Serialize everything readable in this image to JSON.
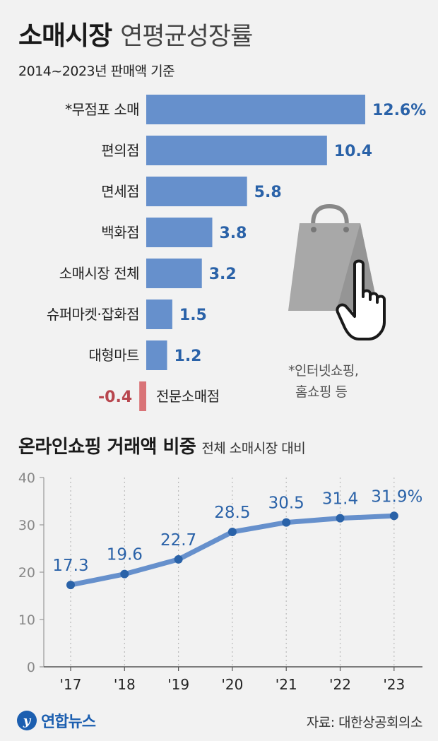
{
  "header": {
    "title_bold": "소매시장",
    "title_light": "연평균성장률",
    "subtitle": "2014~2023년 판매액 기준"
  },
  "section2": {
    "title_bold": "온라인쇼핑 거래액 비중",
    "title_light": "전체 소매시장 대비"
  },
  "footnote": {
    "line1": "*인터넷쇼핑,",
    "line2": "홈쇼핑 등"
  },
  "footer": {
    "logo_mark": "y",
    "logo_text": "연합뉴스",
    "source": "자료: 대한상공회의소"
  },
  "colors": {
    "bar_positive": "#6690cc",
    "bar_negative": "#d97377",
    "label_positive": "#2a62a8",
    "label_negative": "#b8464e",
    "line": "#6690cc",
    "point": "#2a62a8"
  },
  "icons": [
    "shopping-bag-icon",
    "hand-pointer-icon"
  ],
  "chart_data": [
    {
      "type": "bar",
      "orientation": "horizontal",
      "categories": [
        "*무점포 소매",
        "편의점",
        "면세점",
        "백화점",
        "소매시장 전체",
        "슈퍼마켓·잡화점",
        "대형마트",
        "전문소매점"
      ],
      "values": [
        12.6,
        10.4,
        5.8,
        3.8,
        3.2,
        1.5,
        1.2,
        -0.4
      ],
      "value_labels": [
        "12.6%",
        "10.4",
        "5.8",
        "3.8",
        "3.2",
        "1.5",
        "1.2",
        "-0.4"
      ],
      "unit": "%"
    },
    {
      "type": "line",
      "x": [
        "'17",
        "'18",
        "'19",
        "'20",
        "'21",
        "'22",
        "'23"
      ],
      "values": [
        17.3,
        19.6,
        22.7,
        28.5,
        30.5,
        31.4,
        31.9
      ],
      "value_labels": [
        "17.3",
        "19.6",
        "22.7",
        "28.5",
        "30.5",
        "31.4",
        "31.9%"
      ],
      "yticks": [
        0,
        10,
        20,
        30,
        40
      ],
      "ylim": [
        0,
        40
      ],
      "grid": "vertical-dotted"
    }
  ]
}
